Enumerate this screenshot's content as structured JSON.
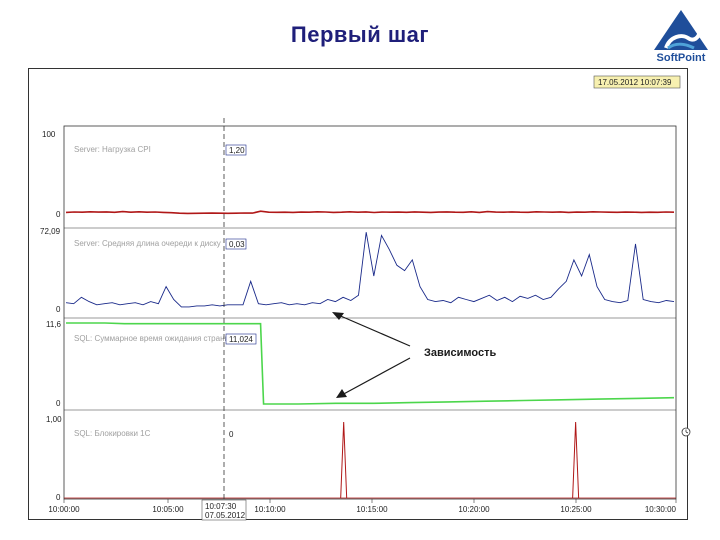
{
  "slide": {
    "title": "Первый шаг"
  },
  "logo": {
    "text": "SoftPoint",
    "colors": {
      "mark": "#1f4e9a",
      "accent": "#4fa3d9"
    }
  },
  "toolbar": {
    "datetime_readout": "17.05.2012 10:07:39",
    "right_icon": "clock-icon"
  },
  "cursor": {
    "time_label": "10:07:30",
    "date_label": "07.05.2012"
  },
  "annotation": {
    "text": "Зависимость"
  },
  "chart_data": {
    "type": "line",
    "x_ticks": [
      "10:00:00",
      "10:05:00",
      "10:10:00",
      "10:15:00",
      "10:20:00",
      "10:25:00",
      "10:30:00"
    ],
    "panels": [
      {
        "name": "Server: Нагрузка CPI",
        "ymax_label": "100",
        "ymin_label": "0",
        "cursor_value": "1,20",
        "color": "#b01818",
        "values": [
          2,
          2.5,
          2.2,
          2.8,
          2.4,
          2.6,
          2.1,
          3.0,
          2.3,
          2.7,
          2.2,
          2.5,
          2.0,
          1.6,
          1.0,
          0.8,
          0.9,
          1.0,
          1.1,
          1.0,
          0.9,
          1.0,
          1.2,
          1.1,
          3.5,
          2.3,
          2.1,
          2.2,
          2.0,
          2.4,
          2.2,
          2.8,
          2.5,
          2.0,
          2.3,
          2.7,
          2.2,
          2.6,
          1.9,
          2.5,
          2.2,
          2.4,
          2.1,
          2.6,
          2.3,
          2.0,
          2.4,
          2.6,
          2.2,
          2.1,
          2.7,
          2.0,
          3.0,
          2.4,
          2.2,
          2.6,
          2.3,
          2.1,
          2.7,
          2.5,
          2.2,
          2.6,
          2.0,
          2.4,
          2.2,
          2.8,
          2.5,
          2.3,
          2.1,
          2.4,
          2.2,
          2.0,
          2.3,
          2.1,
          2.5,
          2.2
        ]
      },
      {
        "name": "Server: Средняя длина очереди к диску",
        "ymax_label": "72,09",
        "ymin_label": "0",
        "cursor_value": "0,03",
        "color": "#1a2a8a",
        "values": [
          5,
          4,
          10,
          6,
          3,
          4,
          5,
          3,
          4,
          5,
          3,
          6,
          4,
          20,
          8,
          1,
          1,
          2,
          2,
          3,
          2,
          3,
          3,
          3,
          25,
          4,
          3,
          4,
          5,
          3,
          4,
          3,
          5,
          4,
          8,
          6,
          10,
          7,
          12,
          71,
          30,
          68,
          55,
          40,
          35,
          45,
          20,
          8,
          6,
          7,
          5,
          10,
          8,
          6,
          9,
          12,
          7,
          10,
          6,
          11,
          9,
          12,
          8,
          10,
          18,
          25,
          45,
          30,
          50,
          20,
          8,
          6,
          5,
          7,
          60,
          8,
          6,
          5,
          7,
          6
        ]
      },
      {
        "name": "SQL: Суммарное время ожидания страниц",
        "ymax_label": "11,6",
        "ymin_label": "0",
        "cursor_value": "11,024",
        "color": "#4cd64c",
        "values": [
          11.6,
          11.6,
          11.6,
          11.5,
          11.5,
          11.5,
          11.5,
          11.5,
          11.5,
          11.5,
          11.5,
          0.0,
          0.0,
          0.1,
          0.1,
          0.2,
          0.3,
          0.4,
          0.5,
          0.6,
          0.7,
          0.8,
          0.9
        ]
      },
      {
        "name": "SQL: Блокировки 1С",
        "ymax_label": "1,00",
        "ymin_label": "0",
        "cursor_value": "0",
        "color": "#b01818",
        "spikes_at_fraction": [
          0.457,
          0.836
        ],
        "spike_height": 0.95
      }
    ]
  }
}
